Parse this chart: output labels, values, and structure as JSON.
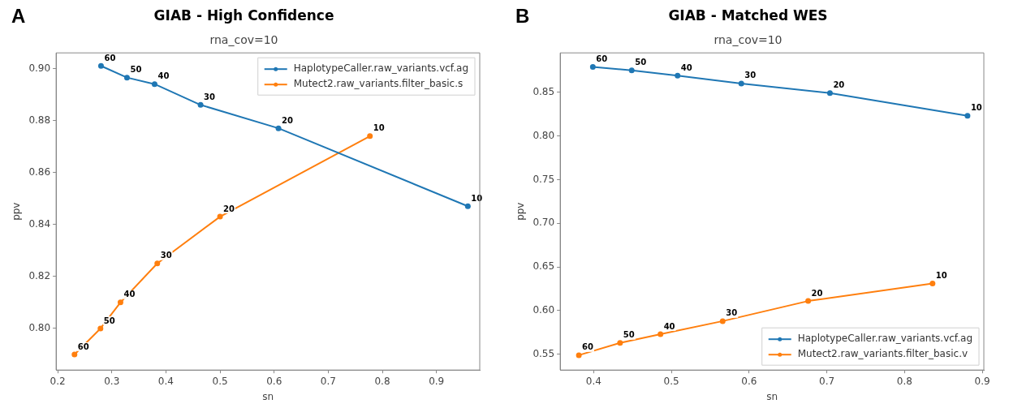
{
  "chart_data": [
    {
      "type": "line",
      "title": "GIAB - High Confidence",
      "subtitle": "rna_cov=10",
      "xlabel": "sn",
      "ylabel": "ppv",
      "marker": "circle",
      "legend": "top right",
      "xlim": [
        0.197,
        0.98
      ],
      "ylim": [
        0.784,
        0.906
      ],
      "xticks": [
        0.2,
        0.3,
        0.4,
        0.5,
        0.6,
        0.7,
        0.8,
        0.9
      ],
      "yticks": [
        {
          "value": 0.8,
          "label": "0.80"
        },
        {
          "value": 0.82,
          "label": "0.82"
        },
        {
          "value": 0.84,
          "label": "0.84"
        },
        {
          "value": 0.86,
          "label": "0.86"
        },
        {
          "value": 0.88,
          "label": "0.88"
        },
        {
          "value": 0.9,
          "label": "0.90"
        }
      ],
      "series": [
        {
          "name": "HaplotypeCaller.raw_variants.vcf.ag",
          "color": "#1f77b4",
          "x": [
            0.28,
            0.328,
            0.379,
            0.464,
            0.608,
            0.958
          ],
          "values": [
            0.901,
            0.8965,
            0.894,
            0.886,
            0.877,
            0.847
          ]
        },
        {
          "name": "Mutect2.raw_variants.filter_basic.s",
          "color": "#ff7f0e",
          "x": [
            0.231,
            0.279,
            0.316,
            0.384,
            0.5,
            0.777
          ],
          "values": [
            0.79,
            0.8,
            0.81,
            0.825,
            0.843,
            0.874
          ]
        }
      ],
      "annotations": [
        "A",
        {
          "text": "60",
          "x": 0.28,
          "y": 0.901
        },
        {
          "text": "50",
          "x": 0.328,
          "y": 0.8965
        },
        {
          "text": "40",
          "x": 0.379,
          "y": 0.894
        },
        {
          "text": "30",
          "x": 0.464,
          "y": 0.886
        },
        {
          "text": "20",
          "x": 0.608,
          "y": 0.877
        },
        {
          "text": "10",
          "x": 0.958,
          "y": 0.847
        },
        {
          "text": "60",
          "x": 0.231,
          "y": 0.79
        },
        {
          "text": "50",
          "x": 0.279,
          "y": 0.8
        },
        {
          "text": "40",
          "x": 0.316,
          "y": 0.81
        },
        {
          "text": "30",
          "x": 0.384,
          "y": 0.825
        },
        {
          "text": "20",
          "x": 0.5,
          "y": 0.843
        },
        {
          "text": "10",
          "x": 0.777,
          "y": 0.874
        }
      ]
    },
    {
      "type": "line",
      "title": "GIAB - Matched WES",
      "subtitle": "rna_cov=10",
      "xlabel": "sn",
      "ylabel": "ppv",
      "marker": "circle",
      "legend": "bottom right",
      "xlim": [
        0.357,
        0.902
      ],
      "ylim": [
        0.532,
        0.895
      ],
      "xticks": [
        0.4,
        0.5,
        0.6,
        0.7,
        0.8,
        0.9
      ],
      "yticks": [
        {
          "value": 0.55,
          "label": "0.55"
        },
        {
          "value": 0.6,
          "label": "0.60"
        },
        {
          "value": 0.65,
          "label": "0.65"
        },
        {
          "value": 0.7,
          "label": "0.70"
        },
        {
          "value": 0.75,
          "label": "0.75"
        },
        {
          "value": 0.8,
          "label": "0.80"
        },
        {
          "value": 0.85,
          "label": "0.85"
        }
      ],
      "series": [
        {
          "name": "HaplotypeCaller.raw_variants.vcf.ag",
          "color": "#1f77b4",
          "x": [
            0.399,
            0.449,
            0.508,
            0.59,
            0.704,
            0.881
          ],
          "values": [
            0.879,
            0.875,
            0.869,
            0.86,
            0.849,
            0.823
          ]
        },
        {
          "name": "Mutect2.raw_variants.filter_basic.v",
          "color": "#ff7f0e",
          "x": [
            0.381,
            0.434,
            0.486,
            0.566,
            0.676,
            0.836
          ],
          "values": [
            0.549,
            0.563,
            0.573,
            0.588,
            0.611,
            0.631
          ]
        }
      ],
      "annotations": [
        "B",
        {
          "text": "60",
          "x": 0.399,
          "y": 0.879
        },
        {
          "text": "50",
          "x": 0.449,
          "y": 0.875
        },
        {
          "text": "40",
          "x": 0.508,
          "y": 0.869
        },
        {
          "text": "30",
          "x": 0.59,
          "y": 0.86
        },
        {
          "text": "20",
          "x": 0.704,
          "y": 0.849
        },
        {
          "text": "10",
          "x": 0.881,
          "y": 0.823
        },
        {
          "text": "60",
          "x": 0.381,
          "y": 0.549
        },
        {
          "text": "50",
          "x": 0.434,
          "y": 0.563
        },
        {
          "text": "40",
          "x": 0.486,
          "y": 0.573
        },
        {
          "text": "30",
          "x": 0.566,
          "y": 0.588
        },
        {
          "text": "20",
          "x": 0.676,
          "y": 0.611
        },
        {
          "text": "10",
          "x": 0.836,
          "y": 0.631
        }
      ]
    }
  ]
}
